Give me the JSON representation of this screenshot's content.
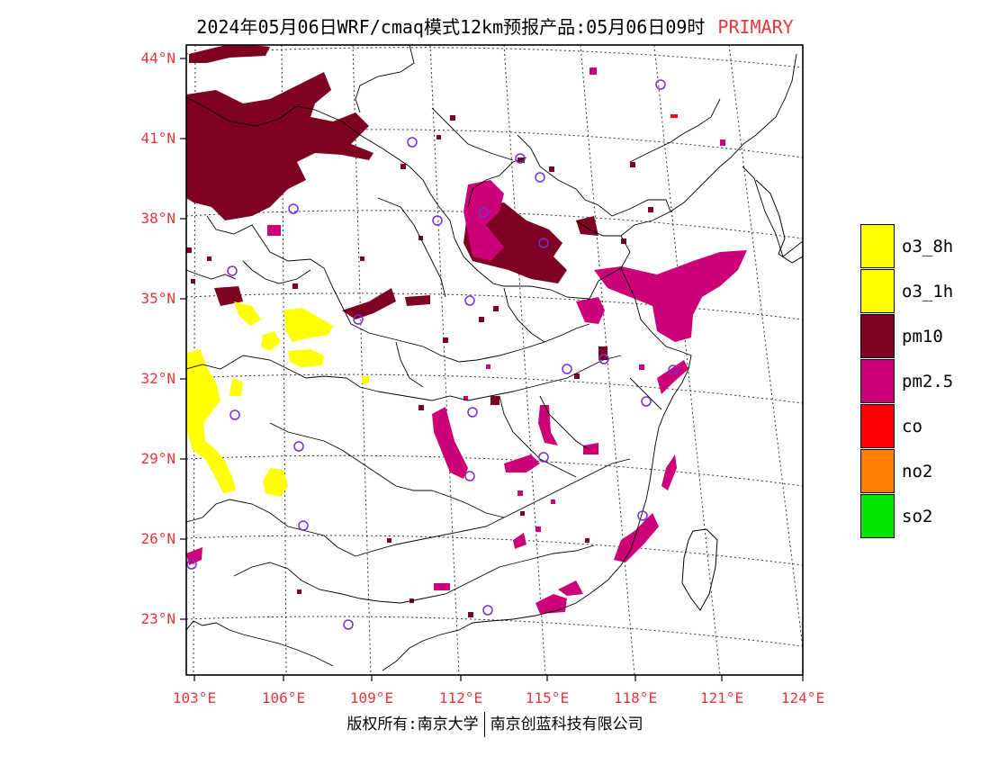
{
  "title": {
    "main": "2024年05月06日WRF/cmaq模式12km预报产品:05月06日09时",
    "tag": "PRIMARY"
  },
  "map": {
    "lat_labels": [
      "44°N",
      "41°N",
      "38°N",
      "35°N",
      "32°N",
      "29°N",
      "26°N",
      "23°N"
    ],
    "lon_labels": [
      "103°E",
      "106°E",
      "109°E",
      "112°E",
      "115°E",
      "118°E",
      "121°E",
      "124°E"
    ],
    "pollutant_colors": {
      "o3_8h": "#ffff00",
      "o3_1h": "#ffff00",
      "pm10": "#7e0023",
      "pm2.5": "#cc0077",
      "co": "#ff0000",
      "no2": "#ff7e00",
      "so2": "#00e400"
    },
    "station_marker_color": "#7a2cd6"
  },
  "legend": {
    "items": [
      {
        "label": "o3_8h",
        "color": "#ffff00"
      },
      {
        "label": "o3_1h",
        "color": "#ffff00"
      },
      {
        "label": "pm10",
        "color": "#7e0023"
      },
      {
        "label": "pm2.5",
        "color": "#cc0077"
      },
      {
        "label": "co",
        "color": "#ff0000"
      },
      {
        "label": "no2",
        "color": "#ff7e00"
      },
      {
        "label": "so2",
        "color": "#00e400"
      }
    ]
  },
  "footer": {
    "left": "版权所有:南京大学",
    "right": "南京创蓝科技有限公司"
  }
}
